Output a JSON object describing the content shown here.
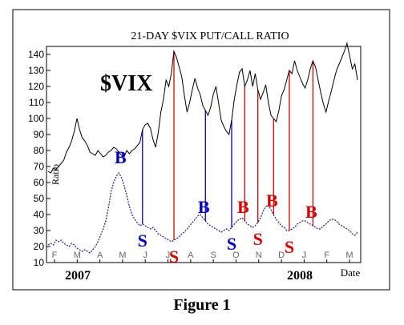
{
  "figure_caption": "Figure 1",
  "chart_data": {
    "type": "line",
    "title": "21-DAY $VIX PUT/CALL RATIO",
    "overlay_label": "$VIX",
    "ylabel": "Ratio",
    "xlabel": "Date",
    "ylim": [
      10,
      145
    ],
    "yticks": [
      10,
      20,
      30,
      40,
      50,
      60,
      70,
      80,
      90,
      100,
      110,
      120,
      130,
      140
    ],
    "x_month_ticks": [
      "F",
      "M",
      "A",
      "M",
      "J",
      "J",
      "A",
      "S",
      "O",
      "N",
      "D",
      "J",
      "F",
      "M"
    ],
    "year_labels": [
      "2007",
      "2008"
    ],
    "grid": false,
    "colors": {
      "vix_line": "#000000",
      "ratio_line": "#1a1a8c",
      "buy_signal": "#0000cc",
      "sell_signal": "#dd0000"
    },
    "series": [
      {
        "name": "$VIX",
        "values": [
          67,
          66,
          69,
          68,
          70,
          72,
          74,
          79,
          82,
          86,
          92,
          100,
          93,
          88,
          86,
          83,
          79,
          78,
          77,
          80,
          78,
          76,
          77,
          79,
          80,
          82,
          81,
          79,
          77,
          76,
          80,
          78,
          80,
          81,
          83,
          85,
          93,
          96,
          97,
          94,
          87,
          82,
          91,
          104,
          112,
          124,
          120,
          128,
          142,
          138,
          132,
          126,
          114,
          104,
          110,
          118,
          125,
          119,
          115,
          108,
          105,
          102,
          107,
          115,
          120,
          110,
          99,
          95,
          92,
          90,
          99,
          112,
          121,
          129,
          131,
          120,
          124,
          130,
          120,
          128,
          118,
          112,
          116,
          121,
          110,
          102,
          100,
          98,
          105,
          114,
          118,
          124,
          130,
          128,
          136,
          130,
          126,
          122,
          119,
          124,
          131,
          136,
          132,
          124,
          116,
          109,
          104,
          111,
          117,
          124,
          130,
          134,
          138,
          142,
          147,
          139,
          131,
          134,
          124
        ]
      },
      {
        "name": "Ratio",
        "values": [
          21,
          22,
          21,
          24,
          23,
          24,
          22,
          21,
          20,
          22,
          21,
          19,
          18,
          17,
          18,
          17,
          16,
          18,
          20,
          23,
          27,
          31,
          36,
          44,
          54,
          60,
          64,
          66,
          63,
          58,
          52,
          45,
          40,
          37,
          35,
          33,
          34,
          33,
          32,
          31,
          32,
          30,
          28,
          27,
          26,
          25,
          24,
          23,
          24,
          25,
          26,
          28,
          29,
          31,
          33,
          35,
          37,
          39,
          40,
          38,
          36,
          34,
          33,
          32,
          31,
          30,
          29,
          30,
          31,
          30,
          32,
          34,
          36,
          37,
          38,
          36,
          34,
          33,
          32,
          33,
          35,
          38,
          42,
          45,
          46,
          43,
          40,
          37,
          35,
          33,
          32,
          30,
          30,
          31,
          32,
          34,
          35,
          36,
          36,
          35,
          34,
          33,
          32,
          31,
          31,
          33,
          34,
          36,
          37,
          37,
          36,
          34,
          33,
          32,
          31,
          30,
          28,
          27,
          29
        ]
      }
    ],
    "signals": [
      {
        "label": "S",
        "type": "sell-low",
        "index": 36,
        "color": "#0000cc"
      },
      {
        "label": "S",
        "type": "sell-low",
        "index": 48,
        "color": "#dd0000"
      },
      {
        "label": "B",
        "type": "buy-high",
        "index": 60,
        "color": "#0000cc"
      },
      {
        "label": "S",
        "type": "sell-low",
        "index": 70,
        "color": "#0000cc"
      },
      {
        "label": "B",
        "type": "buy-high",
        "index": 75,
        "color": "#dd0000"
      },
      {
        "label": "S",
        "type": "sell-low",
        "index": 80,
        "color": "#dd0000"
      },
      {
        "label": "B",
        "type": "buy-high",
        "index": 86,
        "color": "#dd0000"
      },
      {
        "label": "S",
        "type": "sell-low",
        "index": 92,
        "color": "#dd0000"
      },
      {
        "label": "B",
        "type": "buy-high",
        "index": 101,
        "color": "#dd0000"
      }
    ],
    "peak_label": {
      "label": "B",
      "index": 27,
      "color": "#0000cc"
    }
  }
}
